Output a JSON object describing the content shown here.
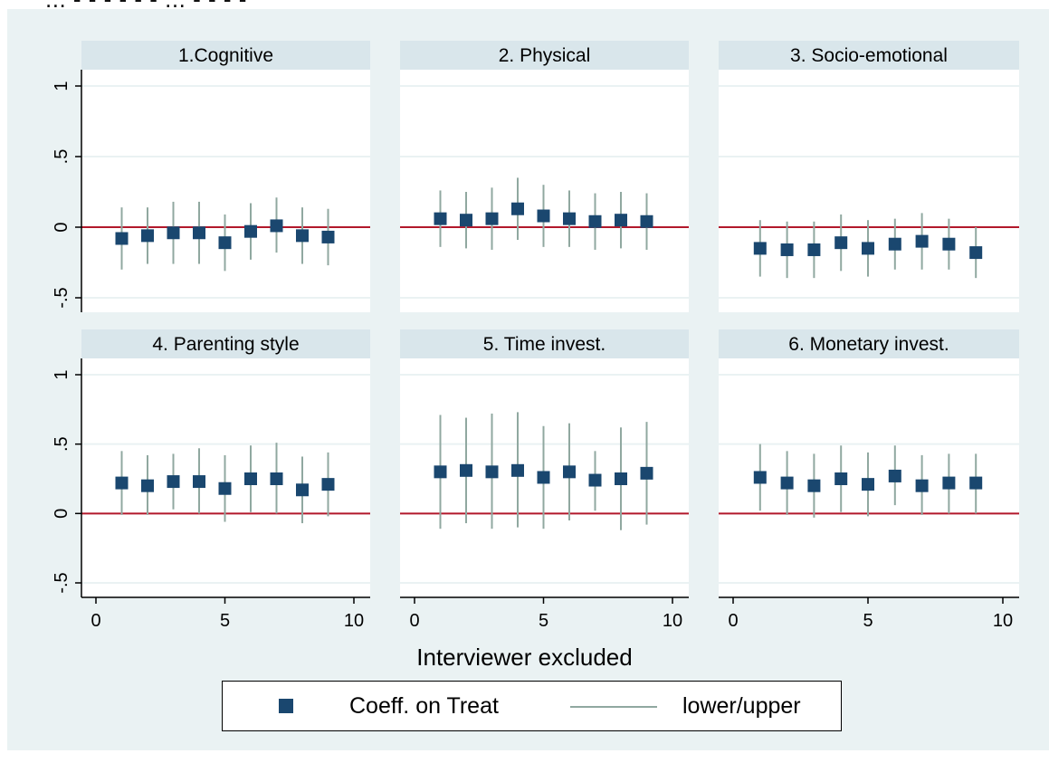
{
  "header_fragment": "... - - - - - - ... - - - -",
  "chart_data": {
    "type": "scatter",
    "subtype": "error-bar small multiples",
    "xlabel": "Interviewer excluded",
    "x_ticks": [
      "0",
      "5",
      "10"
    ],
    "y_ticks": [
      "-.5",
      "0",
      ".5",
      "1"
    ],
    "xlim": [
      0,
      10
    ],
    "ylim": [
      -0.5,
      1
    ],
    "reference_line": 0,
    "colors": {
      "marker": "#1a476f",
      "interval": "#90a8a0",
      "reference": "#b2182b",
      "strip": "#d9e6eb",
      "background": "#eaf2f3"
    },
    "legend": {
      "marker_label": "Coeff. on Treat",
      "line_label": "lower/upper",
      "placement": "bottom"
    },
    "panels": [
      {
        "title": "1.Cognitive",
        "x": [
          1,
          2,
          3,
          4,
          5,
          6,
          7,
          8,
          9
        ],
        "coef": [
          -0.08,
          -0.06,
          -0.04,
          -0.04,
          -0.11,
          -0.03,
          0.01,
          -0.06,
          -0.07
        ],
        "lower": [
          -0.3,
          -0.26,
          -0.26,
          -0.26,
          -0.31,
          -0.23,
          -0.18,
          -0.26,
          -0.27
        ],
        "upper": [
          0.14,
          0.14,
          0.18,
          0.18,
          0.09,
          0.17,
          0.21,
          0.14,
          0.13
        ]
      },
      {
        "title": "2. Physical",
        "x": [
          1,
          2,
          3,
          4,
          5,
          6,
          7,
          8,
          9
        ],
        "coef": [
          0.06,
          0.05,
          0.06,
          0.13,
          0.08,
          0.06,
          0.04,
          0.05,
          0.04
        ],
        "lower": [
          -0.14,
          -0.15,
          -0.16,
          -0.09,
          -0.14,
          -0.14,
          -0.16,
          -0.15,
          -0.16
        ],
        "upper": [
          0.26,
          0.25,
          0.28,
          0.35,
          0.3,
          0.26,
          0.24,
          0.25,
          0.24
        ]
      },
      {
        "title": "3. Socio-emotional",
        "x": [
          1,
          2,
          3,
          4,
          5,
          6,
          7,
          8,
          9
        ],
        "coef": [
          -0.15,
          -0.16,
          -0.16,
          -0.11,
          -0.15,
          -0.12,
          -0.1,
          -0.12,
          -0.18
        ],
        "lower": [
          -0.35,
          -0.36,
          -0.36,
          -0.31,
          -0.35,
          -0.3,
          -0.3,
          -0.3,
          -0.36
        ],
        "upper": [
          0.05,
          0.04,
          0.04,
          0.09,
          0.05,
          0.06,
          0.1,
          0.06,
          0.0
        ]
      },
      {
        "title": "4. Parenting style",
        "x": [
          1,
          2,
          3,
          4,
          5,
          6,
          7,
          8,
          9
        ],
        "coef": [
          0.22,
          0.2,
          0.23,
          0.23,
          0.18,
          0.25,
          0.25,
          0.17,
          0.21
        ],
        "lower": [
          -0.01,
          -0.01,
          0.03,
          0.0,
          -0.06,
          0.01,
          0.0,
          -0.07,
          -0.02
        ],
        "upper": [
          0.45,
          0.42,
          0.43,
          0.47,
          0.42,
          0.49,
          0.51,
          0.41,
          0.44
        ]
      },
      {
        "title": "5. Time invest.",
        "x": [
          1,
          2,
          3,
          4,
          5,
          6,
          7,
          8,
          9
        ],
        "coef": [
          0.3,
          0.31,
          0.3,
          0.31,
          0.26,
          0.3,
          0.24,
          0.25,
          0.29
        ],
        "lower": [
          -0.11,
          -0.07,
          -0.11,
          -0.1,
          -0.11,
          -0.05,
          0.02,
          -0.12,
          -0.08
        ],
        "upper": [
          0.71,
          0.69,
          0.72,
          0.73,
          0.63,
          0.65,
          0.45,
          0.62,
          0.66
        ]
      },
      {
        "title": "6. Monetary invest.",
        "x": [
          1,
          2,
          3,
          4,
          5,
          6,
          7,
          8,
          9
        ],
        "coef": [
          0.26,
          0.22,
          0.2,
          0.25,
          0.21,
          0.27,
          0.2,
          0.22,
          0.22
        ],
        "lower": [
          0.02,
          -0.01,
          -0.03,
          0.01,
          -0.02,
          0.06,
          -0.01,
          0.0,
          0.0
        ],
        "upper": [
          0.5,
          0.45,
          0.43,
          0.49,
          0.44,
          0.49,
          0.42,
          0.43,
          0.43
        ]
      }
    ]
  }
}
